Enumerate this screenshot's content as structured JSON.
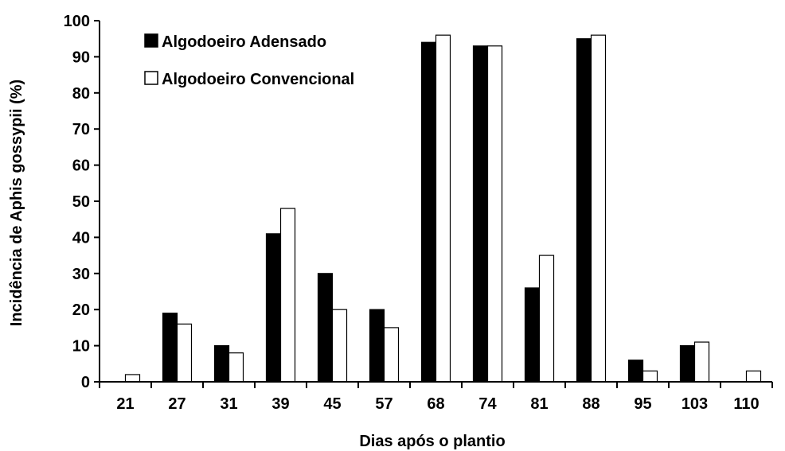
{
  "chart_data": {
    "type": "bar",
    "title": "",
    "xlabel": "Dias após o plantio",
    "ylabel": "Incidência de Aphis gossypii (%)",
    "ylim": [
      0,
      100
    ],
    "yticks": [
      0,
      10,
      20,
      30,
      40,
      50,
      60,
      70,
      80,
      90,
      100
    ],
    "grid": false,
    "legend_position": "top-left",
    "categories": [
      "21",
      "27",
      "31",
      "39",
      "45",
      "57",
      "68",
      "74",
      "81",
      "88",
      "95",
      "103",
      "110"
    ],
    "series": [
      {
        "name": "Algodoeiro Adensado",
        "color": "#000000",
        "values": [
          0,
          19,
          10,
          41,
          30,
          20,
          94,
          93,
          26,
          95,
          6,
          10,
          0
        ]
      },
      {
        "name": "Algodoeiro Convencional",
        "color": "#ffffff",
        "values": [
          2,
          16,
          8,
          48,
          20,
          15,
          96,
          93,
          35,
          96,
          3,
          11,
          3
        ]
      }
    ]
  }
}
